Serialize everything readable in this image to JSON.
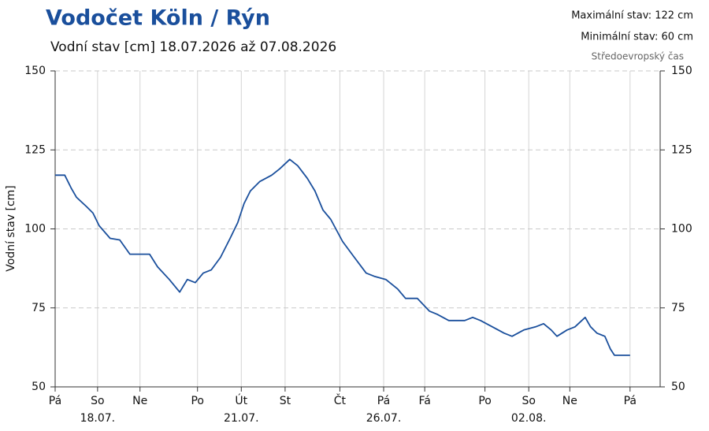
{
  "chart_data": {
    "type": "line",
    "title": "Vodočet Köln / Rýn",
    "subtitle": "Vodní stav [cm] 18.07.2026 až 07.08.2026",
    "notes": [
      "Maximální stav: 122 cm",
      "Minimální stav: 60 cm",
      "Středoevropský čas"
    ],
    "y_label": "Vodní stav [cm]",
    "ylim": [
      50,
      150
    ],
    "yticks": [
      50,
      75,
      100,
      125,
      150
    ],
    "y2lim": [
      50,
      150
    ],
    "y2ticks": [
      50,
      75,
      100,
      125,
      150
    ],
    "xlim": [
      0,
      22.1
    ],
    "xticks": [
      {
        "value": 0,
        "label": "Pá"
      },
      {
        "value": 1.55,
        "label": "So"
      },
      {
        "value": 3.1,
        "label": "Ne"
      },
      {
        "value": 5.2,
        "label": "Po"
      },
      {
        "value": 6.8,
        "label": "Út"
      },
      {
        "value": 8.4,
        "label": "St"
      },
      {
        "value": 10.4,
        "label": "Čt"
      },
      {
        "value": 12.0,
        "label": "Pá"
      },
      {
        "value": 13.5,
        "label": "Fá"
      },
      {
        "value": 15.7,
        "label": "Po"
      },
      {
        "value": 17.3,
        "label": "So"
      },
      {
        "value": 18.8,
        "label": "Ne"
      },
      {
        "value": 21.0,
        "label": "Pá"
      }
    ],
    "xdates": [
      {
        "value": 1.55,
        "label": "18.07."
      },
      {
        "value": 6.8,
        "label": "21.07."
      },
      {
        "value": 12.0,
        "label": "26.07."
      },
      {
        "value": 17.3,
        "label": "02.08."
      }
    ],
    "grid": true,
    "series": [
      {
        "color": "#1a4f9c",
        "x": [
          0,
          0.35,
          0.58,
          0.78,
          1.15,
          1.38,
          1.61,
          2.01,
          2.36,
          2.73,
          3.45,
          3.74,
          4.17,
          4.55,
          4.83,
          5.12,
          5.41,
          5.7,
          6.04,
          6.39,
          6.67,
          6.9,
          7.13,
          7.48,
          7.91,
          8.2,
          8.57,
          8.86,
          9.21,
          9.49,
          9.78,
          10.07,
          10.5,
          10.93,
          11.36,
          11.65,
          12.08,
          12.51,
          12.8,
          13.23,
          13.67,
          13.95,
          14.38,
          14.96,
          15.25,
          15.54,
          15.97,
          16.4,
          16.69,
          17.12,
          17.55,
          17.84,
          18.12,
          18.33,
          18.7,
          18.99,
          19.36,
          19.56,
          19.79,
          20.08,
          20.28,
          20.43,
          21
        ],
        "values": [
          117,
          117,
          113,
          110,
          107,
          105,
          101,
          97,
          96.5,
          92,
          92,
          88,
          84,
          80,
          84,
          83,
          86,
          87,
          91,
          97,
          102,
          108,
          112,
          115,
          117,
          119,
          122,
          120,
          116,
          112,
          106,
          103,
          96,
          91,
          86,
          85,
          84,
          81,
          78,
          78,
          74,
          73,
          71,
          71,
          72,
          71,
          69,
          67,
          66,
          68,
          69,
          70,
          68,
          66,
          68,
          69,
          72,
          69,
          67,
          66,
          62,
          60,
          60
        ]
      }
    ]
  }
}
